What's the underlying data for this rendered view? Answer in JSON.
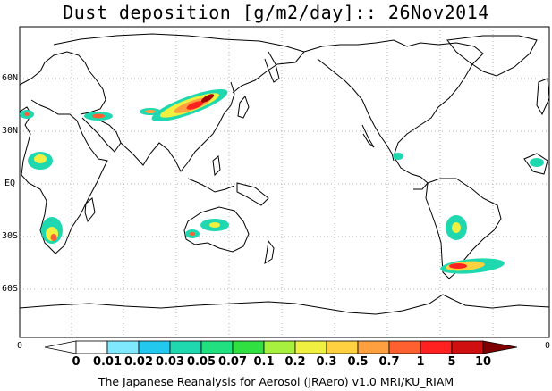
{
  "title": "Dust deposition [g/m2/day]:: 26Nov2014",
  "lat_labels": [
    "60N",
    "30N",
    "EQ",
    "30S",
    "60S"
  ],
  "colorbar": {
    "labels": [
      "0",
      "0.01",
      "0.02",
      "0.03",
      "0.05",
      "0.07",
      "0.1",
      "0.2",
      "0.3",
      "0.5",
      "0.7",
      "1",
      "5",
      "10"
    ],
    "colors": [
      "#ffffff",
      "#ffffff",
      "#7fe8ff",
      "#22c8ee",
      "#20d8b0",
      "#20e080",
      "#30e040",
      "#a8f040",
      "#f0f040",
      "#ffd040",
      "#ffa040",
      "#ff6030",
      "#ff2020",
      "#d01010",
      "#a00000",
      "#800000"
    ],
    "edge_left": "0",
    "edge_right": "0"
  },
  "footer": "The Japanese Reanalysis for Aerosol (JRAero) v1.0 MRI/KU_RIAM"
}
